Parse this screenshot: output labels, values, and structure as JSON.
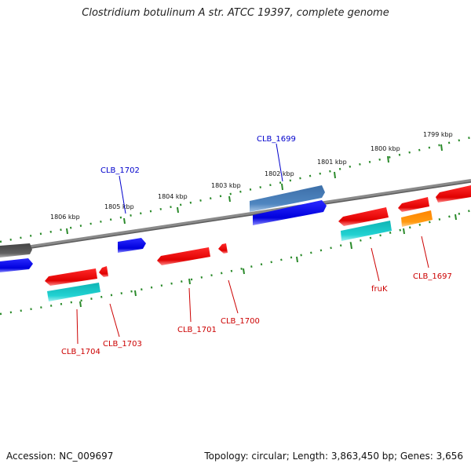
{
  "title": "Clostridium botulinum A str. ATCC 19397, complete genome",
  "footer": {
    "accession": "Accession: NC_009697",
    "stats": "Topology: circular; Length: 3,863,450 bp; Genes: 3,656"
  },
  "colors": {
    "background": "#ffffff",
    "backbone": "#7a7a7a",
    "tick": "#2a8a2a",
    "forward_label": "#0000cc",
    "reverse_label": "#cc0000",
    "red": "#ff1a1a",
    "blue": "#1010ee",
    "steelblue": "#4a7fb8",
    "cyan": "#1fc9c9",
    "orange": "#ff8c00",
    "gray": "#555555"
  },
  "scale_labels": [
    "1806 kbp",
    "1805 kbp",
    "1804 kbp",
    "1803 kbp",
    "1802 kbp",
    "1801 kbp",
    "1800 kbp",
    "1799 kbp"
  ],
  "gene_labels": {
    "forward": [
      "CLB_1702",
      "CLB_1699"
    ],
    "reverse": [
      "CLB_1704",
      "CLB_1703",
      "CLB_1701",
      "CLB_1700",
      "fruK",
      "CLB_1697"
    ]
  }
}
